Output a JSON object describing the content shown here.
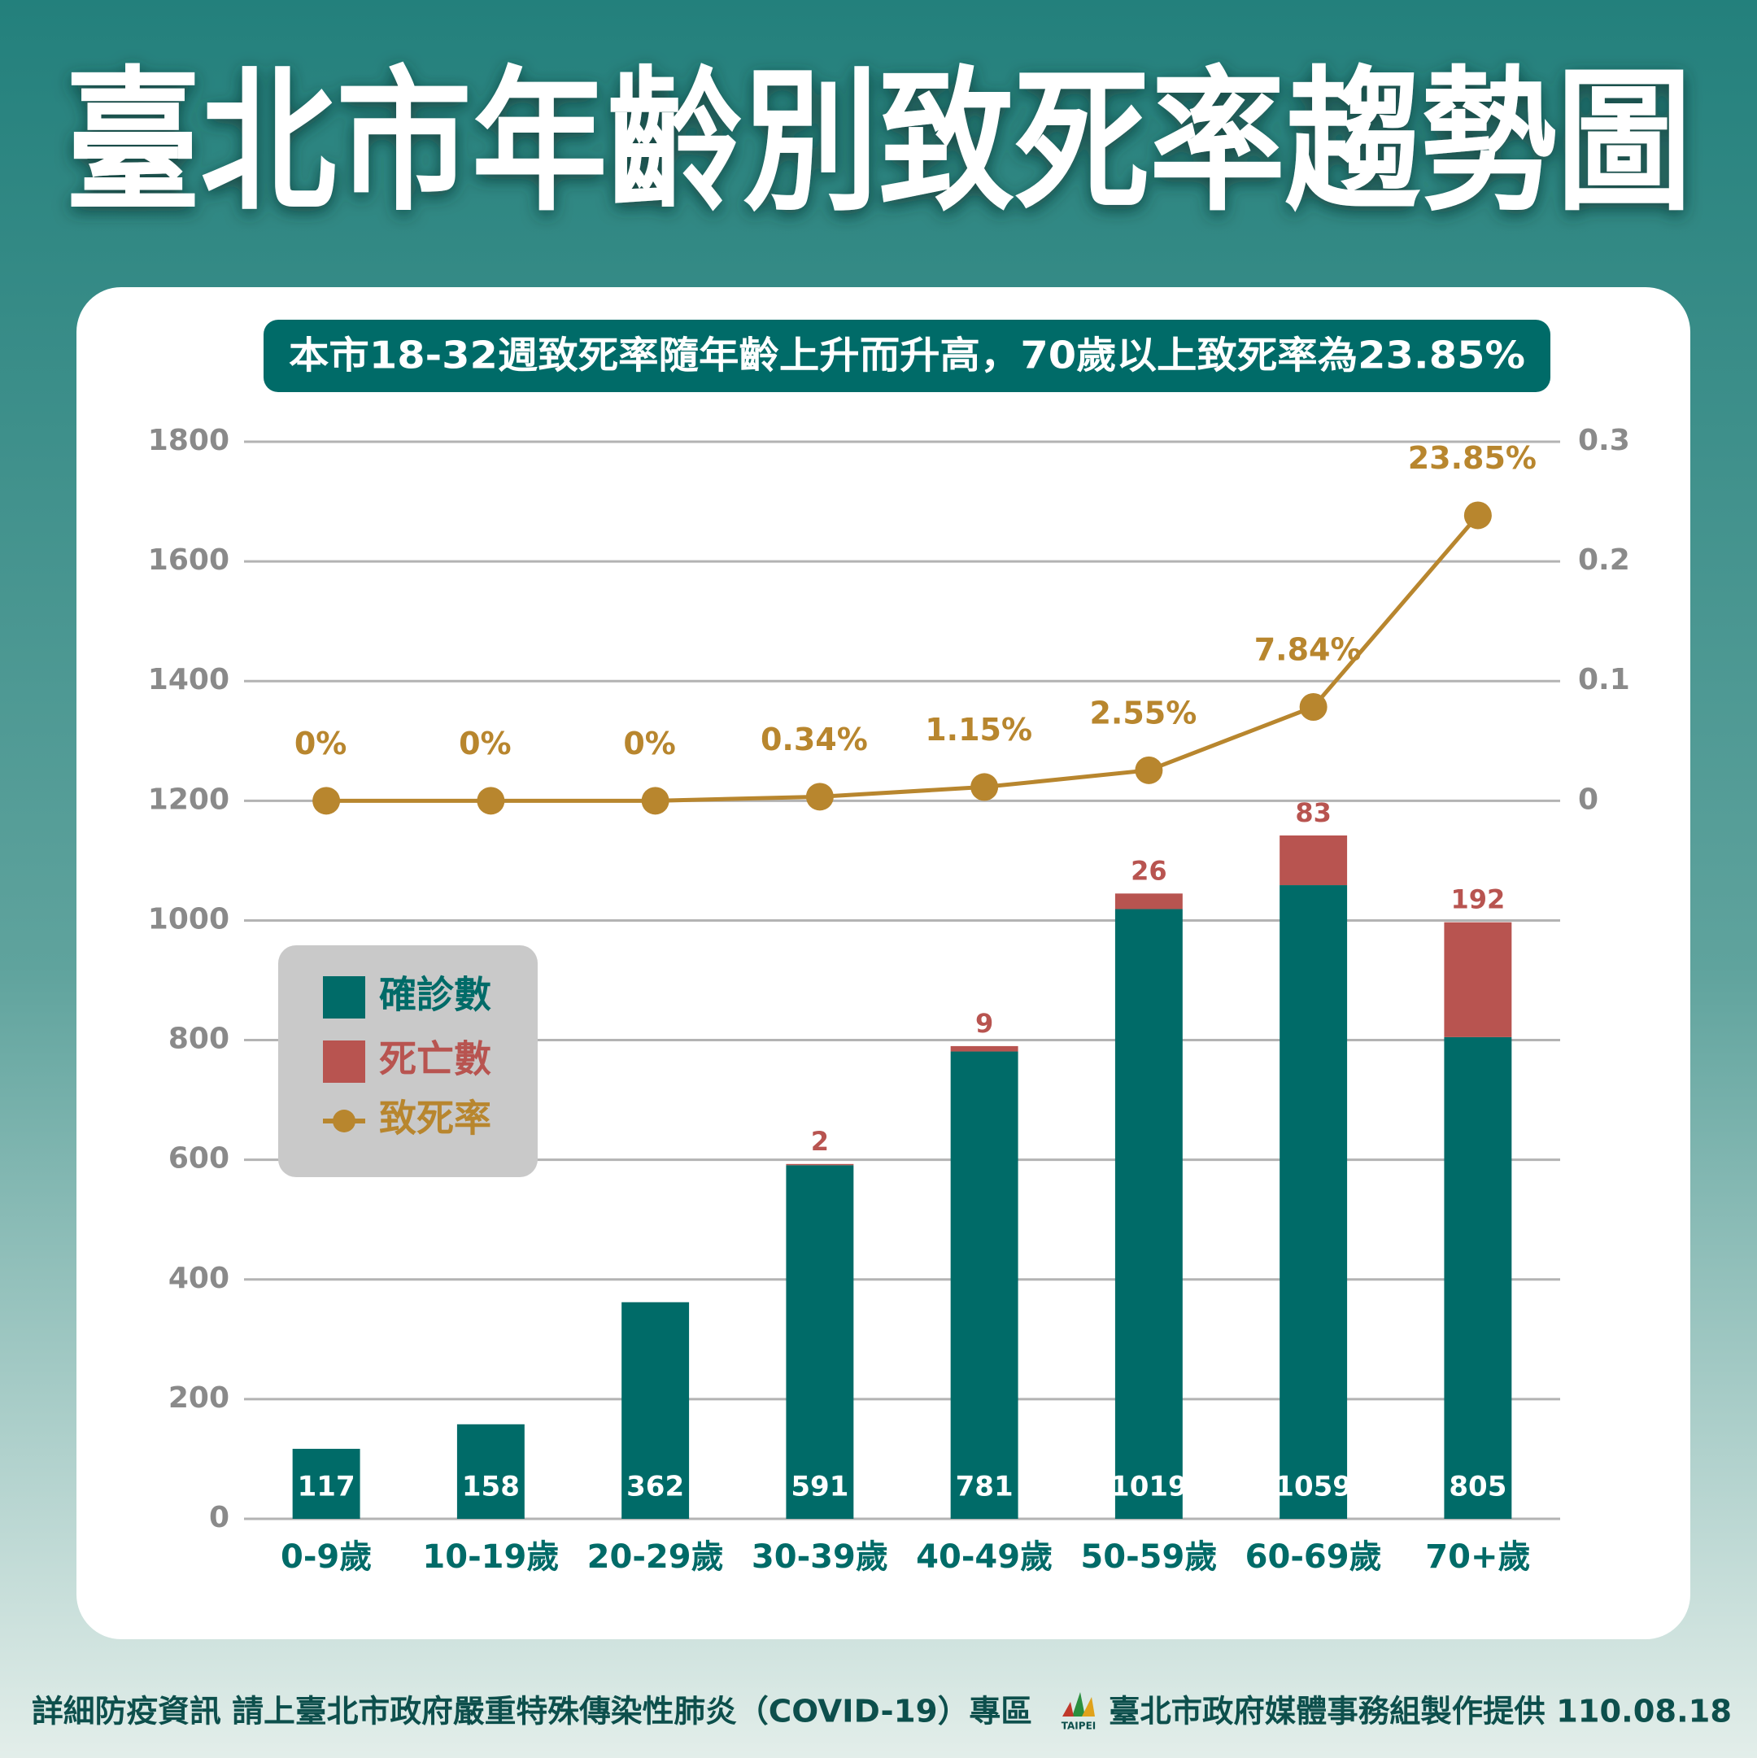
{
  "chart_data": {
    "type": "bar",
    "title": "臺北市年齡別致死率趨勢圖",
    "subtitle": "本市18-32週致死率隨年齡上升而升高，70歲以上致死率為23.85%",
    "categories": [
      "0-9歲",
      "10-19歲",
      "20-29歲",
      "30-39歲",
      "40-49歲",
      "50-59歲",
      "60-69歲",
      "70+歲"
    ],
    "series": [
      {
        "name": "確診數",
        "color": "#006b68",
        "type": "bar",
        "values": [
          117,
          158,
          362,
          591,
          781,
          1019,
          1059,
          805
        ]
      },
      {
        "name": "死亡數",
        "color": "#b85450",
        "type": "bar",
        "values": [
          0,
          0,
          0,
          2,
          9,
          26,
          83,
          192
        ],
        "value_labels": [
          null,
          null,
          null,
          "2",
          "9",
          "26",
          "83",
          "192"
        ]
      },
      {
        "name": "致死率",
        "color": "#b8862e",
        "type": "line",
        "axis": "y2",
        "values": [
          0,
          0,
          0,
          0.0034,
          0.0115,
          0.0255,
          0.0784,
          0.2385
        ],
        "value_labels": [
          "0%",
          "0%",
          "0%",
          "0.34%",
          "1.15%",
          "2.55%",
          "7.84%",
          "23.85%"
        ]
      }
    ],
    "ylim": [
      0,
      1800
    ],
    "yticks": [
      0,
      200,
      400,
      600,
      800,
      1000,
      1200,
      1400,
      1600,
      1800
    ],
    "y2lim": [
      -0.6,
      0.3
    ],
    "y2ticks": [
      0,
      0.1,
      0.2,
      0.3
    ],
    "grid": true,
    "legend": "left",
    "footer_left": "詳細防疫資訊 請上臺北市政府嚴重特殊傳染性肺炎（COVID-19）專區",
    "logo": "TAIPEI",
    "footer_right": "臺北市政府媒體事務組製作提供 110.08.18"
  }
}
